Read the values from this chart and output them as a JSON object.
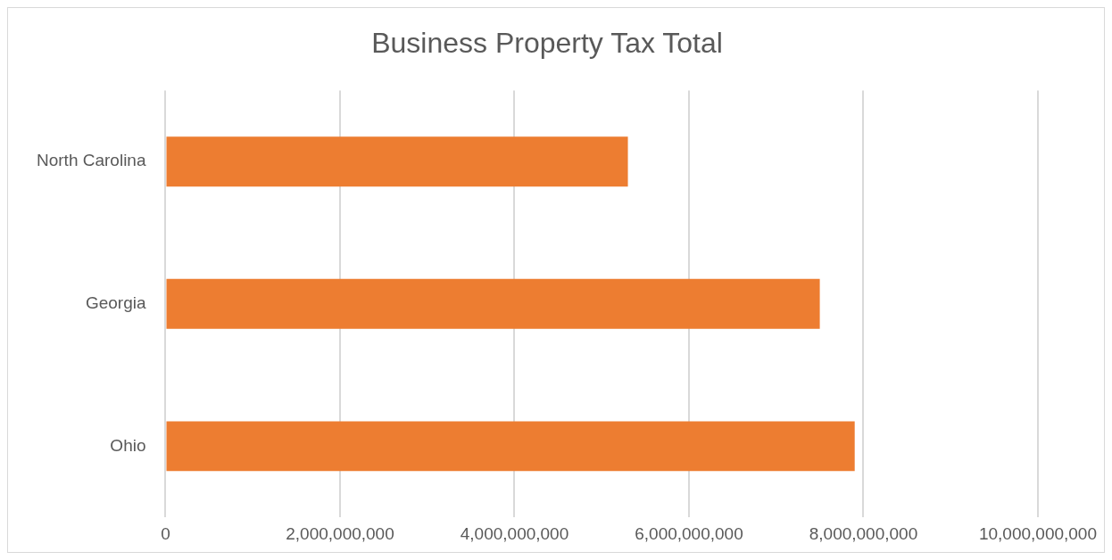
{
  "chart_data": {
    "type": "bar",
    "orientation": "horizontal",
    "title": "Business Property Tax Total",
    "categories": [
      "North Carolina",
      "Georgia",
      "Ohio"
    ],
    "values": [
      5300000000,
      7500000000,
      7900000000
    ],
    "color": "#ed7d31",
    "xlim": [
      0,
      10000000000
    ],
    "xticks": [
      0,
      {
        "value": 2000000000,
        "label": "2,000,000,000"
      },
      {
        "value": 4000000000,
        "label": "4,000,000,000"
      },
      {
        "value": 6000000000,
        "label": "6,000,000,000"
      },
      {
        "value": 8000000000,
        "label": "8,000,000,000"
      },
      {
        "value": 10000000000,
        "label": "10,000,000,000"
      }
    ],
    "grid": "x",
    "legend": false
  }
}
